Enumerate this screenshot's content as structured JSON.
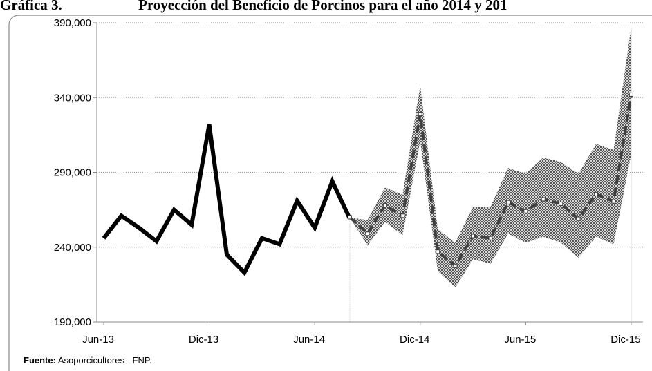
{
  "chart_data": {
    "type": "line",
    "title_number": "Gráfica 3.",
    "title": "Proyección del Beneficio de Porcinos para el año 2014 y 201",
    "source_label": "Fuente:",
    "source": "Asoporcicultores - FNP.",
    "categories": [
      "Jun-13",
      null,
      null,
      null,
      null,
      null,
      "Dic-13",
      null,
      null,
      null,
      null,
      null,
      "Jun-14",
      null,
      null,
      null,
      null,
      null,
      "Dic-14",
      null,
      null,
      null,
      null,
      null,
      "Jun-15",
      null,
      null,
      null,
      null,
      null,
      "Dic-15"
    ],
    "series": [
      {
        "color": "#000000",
        "values": [
          246000,
          261000,
          253000,
          244000,
          265000,
          255000,
          322000,
          235000,
          223000,
          246000,
          242000,
          271000,
          253000,
          284000,
          259000,
          null,
          null,
          null,
          null,
          null,
          null,
          null,
          null,
          null,
          null,
          null,
          null,
          null,
          null,
          null,
          null
        ]
      },
      {
        "color": "#404040",
        "values": [
          null,
          null,
          null,
          null,
          null,
          null,
          null,
          null,
          null,
          null,
          null,
          null,
          null,
          null,
          260000,
          249000,
          268000,
          261000,
          329000,
          237000,
          227500,
          247500,
          246000,
          270000,
          264000,
          272000,
          269000,
          259000,
          275500,
          270500,
          342000
        ]
      }
    ],
    "band": {
      "color": "#555555",
      "upper": [
        null,
        null,
        null,
        null,
        null,
        null,
        null,
        null,
        null,
        null,
        null,
        null,
        null,
        null,
        260000,
        258000,
        280000,
        275000,
        348000,
        252000,
        243000,
        267000,
        267000,
        293000,
        289000,
        300000,
        297000,
        289000,
        309000,
        305000,
        387000
      ],
      "lower": [
        null,
        null,
        null,
        null,
        null,
        null,
        null,
        null,
        null,
        null,
        null,
        null,
        null,
        null,
        260000,
        241000,
        257000,
        248000,
        311000,
        224000,
        213000,
        232000,
        229000,
        249000,
        243000,
        247000,
        243000,
        233000,
        247000,
        242000,
        302000
      ]
    },
    "ylim": [
      190000,
      390000
    ],
    "yticks": [
      {
        "value": 190000,
        "label": "190,000"
      },
      {
        "value": 240000,
        "label": "240,000"
      },
      {
        "value": 290000,
        "label": "290,000"
      },
      {
        "value": 340000,
        "label": "340,000"
      },
      {
        "value": 390000,
        "label": "390,000"
      }
    ],
    "grid": true
  }
}
